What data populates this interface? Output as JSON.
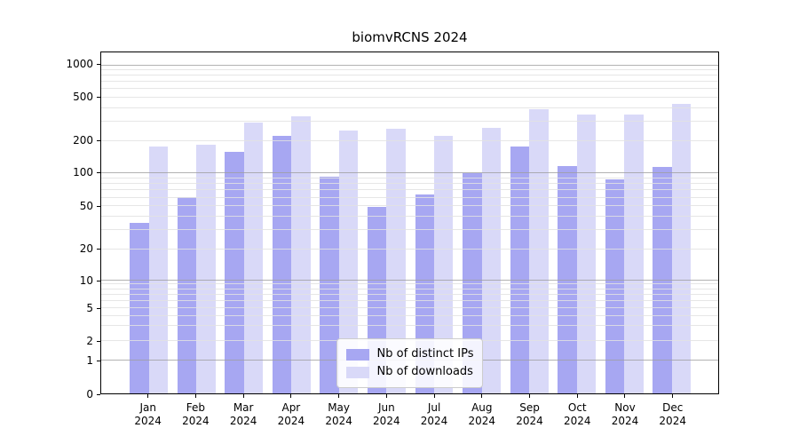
{
  "chart_data": {
    "type": "bar",
    "title": "biomvRCNS 2024",
    "categories": [
      "Jan",
      "Feb",
      "Mar",
      "Apr",
      "May",
      "Jun",
      "Jul",
      "Aug",
      "Sep",
      "Oct",
      "Nov",
      "Dec"
    ],
    "x_tick_year_line": "2024",
    "series": [
      {
        "name": "Nb of distinct IPs",
        "color": "#a7a7f2",
        "values": [
          35,
          61,
          158,
          225,
          94,
          49,
          64,
          100,
          178,
          118,
          89,
          115
        ]
      },
      {
        "name": "Nb of downloads",
        "color": "#d9d9f8",
        "values": [
          178,
          184,
          296,
          338,
          251,
          260,
          221,
          265,
          392,
          351,
          350,
          436
        ]
      }
    ],
    "y_ticks": [
      0,
      1,
      2,
      5,
      10,
      20,
      50,
      100,
      200,
      500,
      1000
    ],
    "y_scale": "symlog",
    "ylim": [
      0,
      1300
    ],
    "xlabel": "",
    "ylabel": "",
    "grid": "on",
    "legend_position": "lower center",
    "colors": {
      "major_grid": "#b0b0b0",
      "minor_grid": "#e2e2e2",
      "axis": "#000000",
      "background": "#ffffff"
    }
  }
}
